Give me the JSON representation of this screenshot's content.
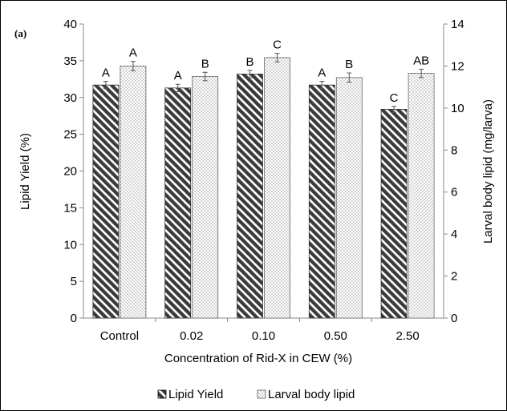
{
  "chart_data": {
    "type": "bar",
    "panel_label": "(a)",
    "categories": [
      "Control",
      "0.02",
      "0.10",
      "0.50",
      "2.50"
    ],
    "xlabel": "Concentration of Rid-X in CEW (%)",
    "ylabel_left": "Lipid Yield (%)",
    "ylabel_right": "Larval body lipid (mg/larva)",
    "ylim_left": [
      0,
      40
    ],
    "ylim_right": [
      0,
      14
    ],
    "yticks_left": [
      "0",
      "5",
      "10",
      "15",
      "20",
      "25",
      "30",
      "35",
      "40"
    ],
    "yticks_right": [
      "0",
      "2",
      "4",
      "6",
      "8",
      "10",
      "12",
      "14"
    ],
    "grid": false,
    "legend_placement": "bottom",
    "series": [
      {
        "name": "Lipid Yield",
        "axis": "left",
        "pattern": "diagonal-hatch",
        "color": "#3a3a3a",
        "values": [
          31.7,
          31.3,
          33.2,
          31.7,
          28.4
        ],
        "errors": [
          0.5,
          0.5,
          0.5,
          0.5,
          0.4
        ],
        "letters": [
          "A",
          "A",
          "B",
          "A",
          "C"
        ]
      },
      {
        "name": "Larval body lipid",
        "axis": "right",
        "pattern": "dotted",
        "color": "#9a9a9a",
        "values": [
          12.0,
          11.5,
          12.4,
          11.45,
          11.65
        ],
        "errors": [
          0.22,
          0.2,
          0.2,
          0.22,
          0.2
        ],
        "letters": [
          "A",
          "B",
          "C",
          "B",
          "AB"
        ]
      }
    ]
  }
}
